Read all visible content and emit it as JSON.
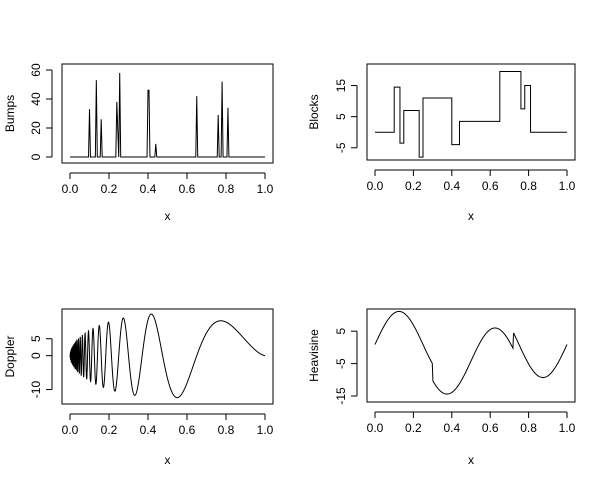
{
  "chart_data": [
    {
      "type": "line",
      "series_name": "Bumps",
      "xlabel": "x",
      "ylabel": "Bumps",
      "xlim": [
        0,
        1
      ],
      "ylim": [
        0,
        60
      ],
      "xticks": [
        "0.0",
        "0.2",
        "0.4",
        "0.6",
        "0.8",
        "1.0"
      ],
      "yticks": [
        "0",
        "20",
        "40",
        "60"
      ],
      "ytick_values": [
        0,
        20,
        40,
        60
      ],
      "grid": false,
      "legend": "none",
      "x": [
        0.0,
        0.095,
        0.1,
        0.105,
        0.13,
        0.135,
        0.14,
        0.145,
        0.155,
        0.16,
        0.165,
        0.235,
        0.24,
        0.245,
        0.25,
        0.255,
        0.26,
        0.265,
        0.395,
        0.4,
        0.405,
        0.41,
        0.415,
        0.435,
        0.44,
        0.445,
        0.645,
        0.65,
        0.655,
        0.755,
        0.76,
        0.765,
        0.775,
        0.78,
        0.785,
        0.805,
        0.81,
        0.815,
        1.0
      ],
      "y": [
        0,
        0,
        33,
        0,
        0,
        53,
        0,
        0,
        0,
        26,
        0,
        0,
        38,
        19,
        0,
        58,
        0,
        0,
        0,
        46,
        46,
        0,
        0,
        0,
        9,
        0,
        0,
        42,
        0,
        0,
        29,
        0,
        0,
        52,
        0,
        0,
        34,
        0,
        0
      ]
    },
    {
      "type": "line",
      "series_name": "Blocks",
      "xlabel": "x",
      "ylabel": "Blocks",
      "xlim": [
        0,
        1
      ],
      "ylim": [
        -7,
        20
      ],
      "xticks": [
        "0.0",
        "0.2",
        "0.4",
        "0.6",
        "0.8",
        "1.0"
      ],
      "yticks": [
        "-5",
        "5",
        "15"
      ],
      "ytick_values": [
        -5,
        5,
        15
      ],
      "grid": false,
      "legend": "none",
      "x": [
        0.0,
        0.1,
        0.1,
        0.13,
        0.13,
        0.15,
        0.15,
        0.23,
        0.23,
        0.25,
        0.25,
        0.4,
        0.4,
        0.44,
        0.44,
        0.65,
        0.65,
        0.76,
        0.76,
        0.78,
        0.78,
        0.81,
        0.81,
        1.0
      ],
      "y": [
        0,
        0,
        14.5,
        14.5,
        -3.5,
        -3.5,
        7,
        7,
        -8,
        -8,
        11,
        11,
        -4,
        -4,
        3.5,
        3.5,
        19.5,
        19.5,
        7.5,
        7.5,
        15,
        15,
        0,
        0
      ]
    },
    {
      "type": "line",
      "series_name": "Doppler",
      "xlabel": "x",
      "ylabel": "Doppler",
      "xlim": [
        0,
        1
      ],
      "ylim": [
        -12.5,
        12
      ],
      "xticks": [
        "0.0",
        "0.2",
        "0.4",
        "0.6",
        "0.8",
        "1.0"
      ],
      "yticks": [
        "-10",
        "0",
        "5"
      ],
      "ytick_values": [
        -10,
        0,
        5
      ],
      "grid": false,
      "legend": "none",
      "formula": "y = 24.9 * sqrt(x*(1-x)) * sin(2*pi*1.05/(x+0.05))",
      "x": [
        0.0,
        0.02,
        0.05,
        0.1,
        0.15,
        0.2,
        0.25,
        0.3,
        0.35,
        0.4,
        0.45,
        0.5,
        0.55,
        0.6,
        0.65,
        0.7,
        0.75,
        0.8,
        0.85,
        0.9,
        0.95,
        1.0
      ],
      "y": [
        0,
        1.5,
        -4.2,
        -0.8,
        6.1,
        -8.6,
        6.2,
        2.3,
        11.2,
        -1.1,
        -9.2,
        -12.3,
        -9.7,
        -3.6,
        3.2,
        8.6,
        10.6,
        9.7,
        7.2,
        3.8,
        1.4,
        0
      ]
    },
    {
      "type": "line",
      "series_name": "Heavisine",
      "xlabel": "x",
      "ylabel": "Heavisine",
      "xlim": [
        0,
        1
      ],
      "ylim": [
        -15,
        10
      ],
      "xticks": [
        "0.0",
        "0.2",
        "0.4",
        "0.6",
        "0.8",
        "1.0"
      ],
      "yticks": [
        "-15",
        "-5",
        "5"
      ],
      "ytick_values": [
        -15,
        -5,
        5
      ],
      "grid": false,
      "legend": "none",
      "formula": "y = 4*sin(4*pi*x) - sign(x-0.3) - sign(0.72-x), scaled to range",
      "x": [
        0.0,
        0.05,
        0.1,
        0.125,
        0.15,
        0.2,
        0.25,
        0.3,
        0.3,
        0.35,
        0.375,
        0.4,
        0.45,
        0.5,
        0.55,
        0.6,
        0.625,
        0.65,
        0.7,
        0.72,
        0.72,
        0.75,
        0.8,
        0.85,
        0.875,
        0.9,
        0.95,
        1.0
      ],
      "y": [
        -1.3,
        5.8,
        9.9,
        10.4,
        9.6,
        5.1,
        -1.3,
        -7.8,
        -10.7,
        -14.6,
        -15.1,
        -14.3,
        -9.8,
        -3.5,
        2.8,
        6.9,
        7.3,
        6.5,
        2.7,
        0.5,
        3.5,
        0.9,
        -4.3,
        -8.3,
        -8.9,
        -8.2,
        -4.6,
        0.9
      ]
    }
  ]
}
